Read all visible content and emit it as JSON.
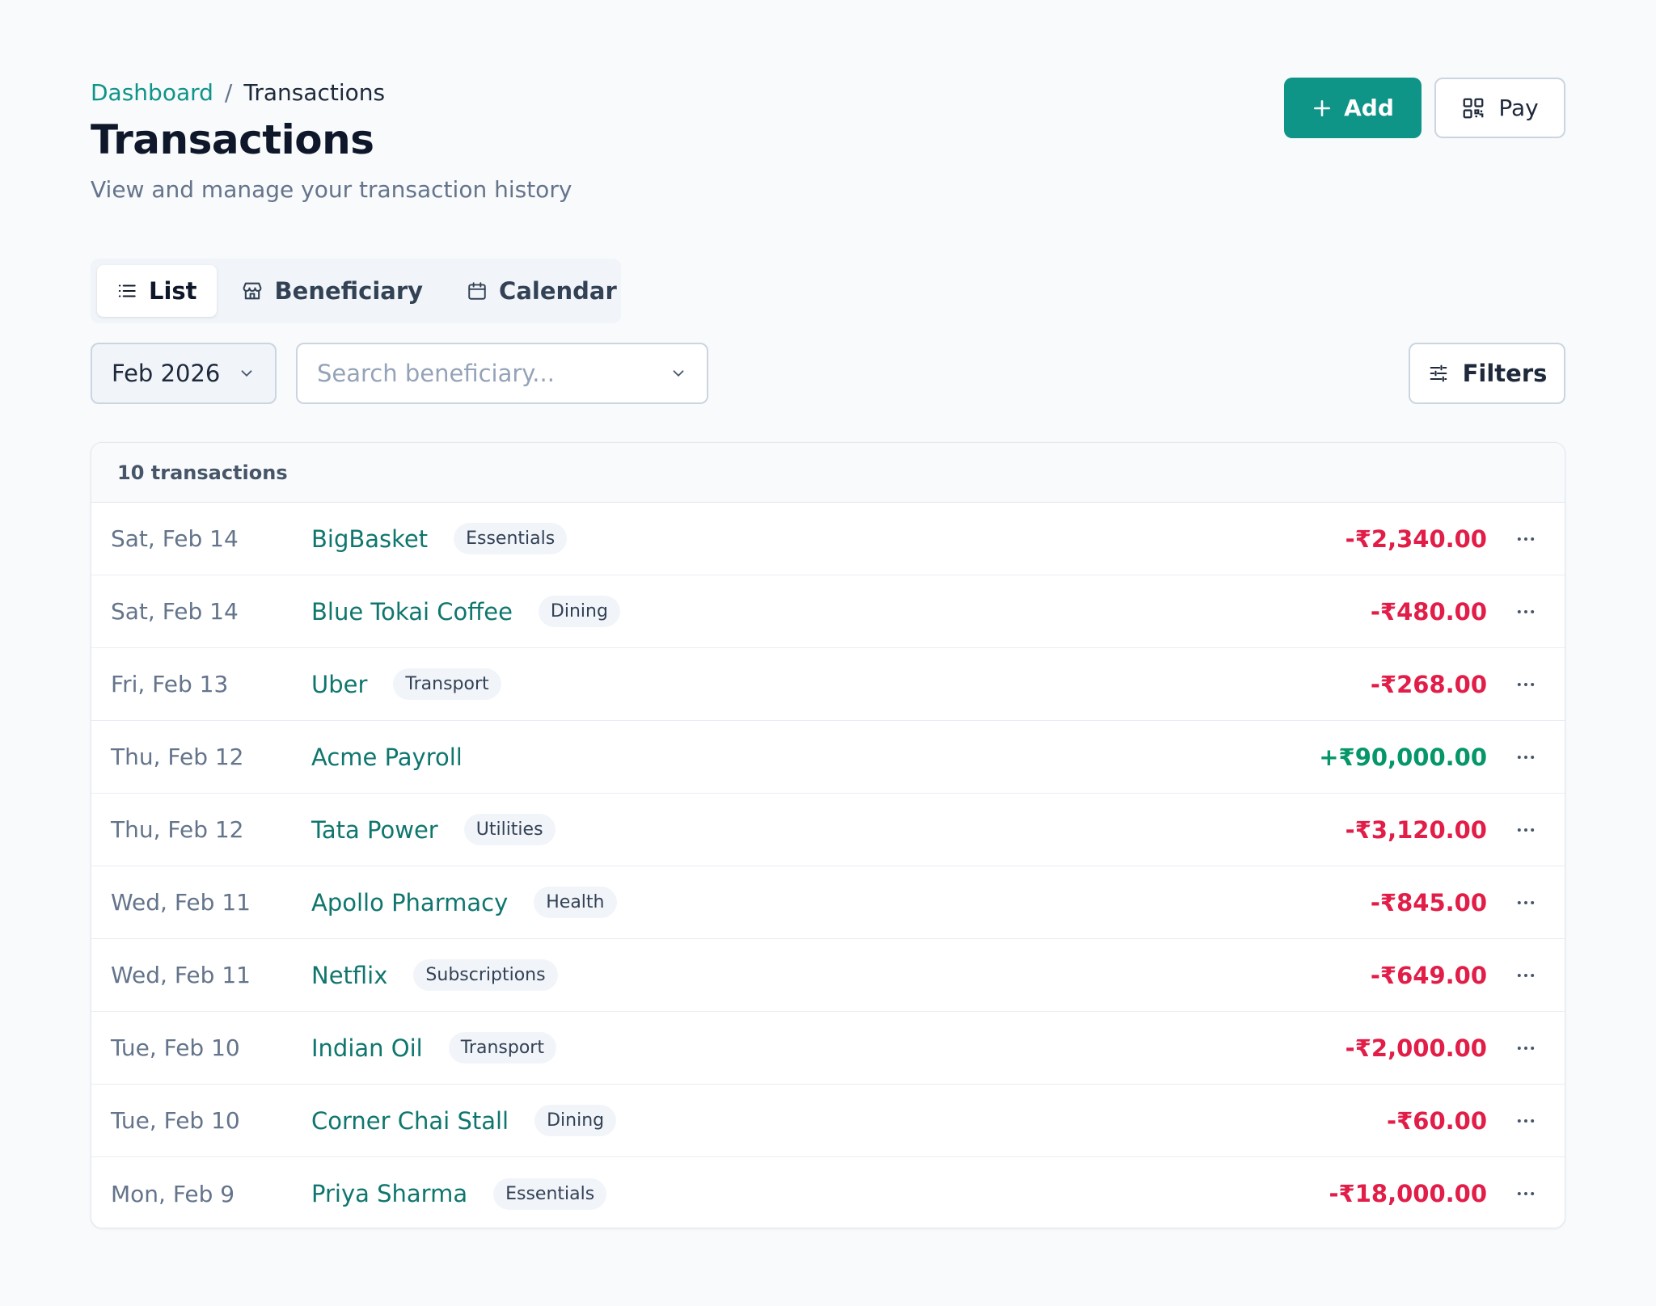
{
  "breadcrumb": {
    "parent": "Dashboard",
    "separator": "/",
    "current": "Transactions"
  },
  "header": {
    "title": "Transactions",
    "subtitle": "View and manage your transaction history",
    "add_label": "Add",
    "pay_label": "Pay"
  },
  "tabs": [
    {
      "label": "List",
      "icon": "list-icon",
      "active": true
    },
    {
      "label": "Beneficiary",
      "icon": "store-icon",
      "active": false
    },
    {
      "label": "Calendar",
      "icon": "calendar-icon",
      "active": false
    }
  ],
  "filters": {
    "month_value": "Feb 2026",
    "search_placeholder": "Search beneficiary...",
    "filters_label": "Filters"
  },
  "table": {
    "count_label": "10 transactions",
    "rows": [
      {
        "date": "Sat, Feb 14",
        "name": "BigBasket",
        "tag": "Essentials",
        "amount": "-₹2,340.00",
        "type": "debit"
      },
      {
        "date": "Sat, Feb 14",
        "name": "Blue Tokai Coffee",
        "tag": "Dining",
        "amount": "-₹480.00",
        "type": "debit"
      },
      {
        "date": "Fri, Feb 13",
        "name": "Uber",
        "tag": "Transport",
        "amount": "-₹268.00",
        "type": "debit"
      },
      {
        "date": "Thu, Feb 12",
        "name": "Acme Payroll",
        "tag": "",
        "amount": "+₹90,000.00",
        "type": "credit"
      },
      {
        "date": "Thu, Feb 12",
        "name": "Tata Power",
        "tag": "Utilities",
        "amount": "-₹3,120.00",
        "type": "debit"
      },
      {
        "date": "Wed, Feb 11",
        "name": "Apollo Pharmacy",
        "tag": "Health",
        "amount": "-₹845.00",
        "type": "debit"
      },
      {
        "date": "Wed, Feb 11",
        "name": "Netflix",
        "tag": "Subscriptions",
        "amount": "-₹649.00",
        "type": "debit"
      },
      {
        "date": "Tue, Feb 10",
        "name": "Indian Oil",
        "tag": "Transport",
        "amount": "-₹2,000.00",
        "type": "debit"
      },
      {
        "date": "Tue, Feb 10",
        "name": "Corner Chai Stall",
        "tag": "Dining",
        "amount": "-₹60.00",
        "type": "debit"
      },
      {
        "date": "Mon, Feb 9",
        "name": "Priya Sharma",
        "tag": "Essentials",
        "amount": "-₹18,000.00",
        "type": "debit"
      }
    ]
  },
  "colors": {
    "accent": "#0f9488",
    "debit": "#e11d48",
    "credit": "#059669"
  }
}
